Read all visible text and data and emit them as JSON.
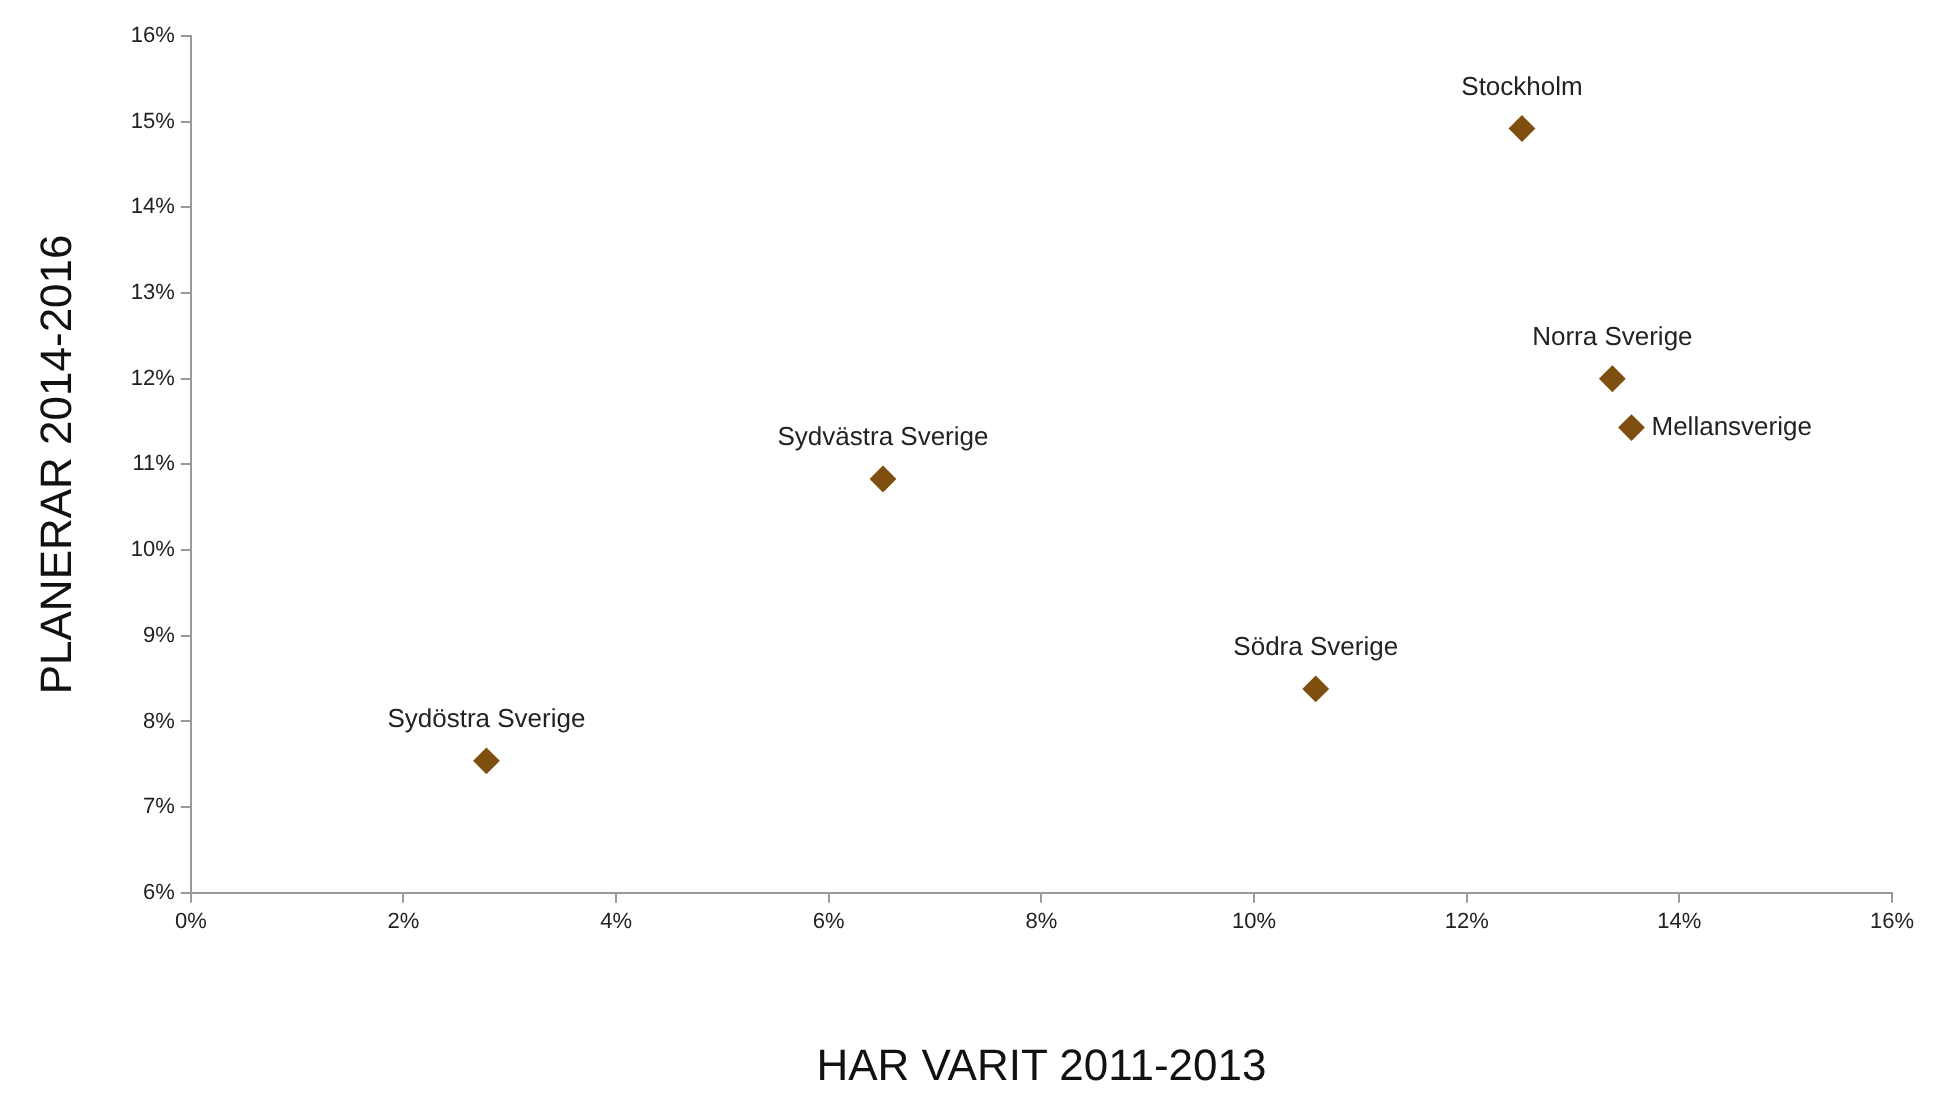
{
  "chart_data": {
    "type": "scatter",
    "xlabel": "HAR VARIT 2011-2013",
    "ylabel": "PLANERAR 2014-2016",
    "x": [
      12.52,
      13.37,
      13.55,
      6.51,
      10.58,
      2.78
    ],
    "series": [
      {
        "color": "#7f4f10",
        "values": [
          14.92,
          12.0,
          11.43,
          10.83,
          8.38,
          7.54
        ]
      }
    ],
    "marker": "diamond",
    "grid": false,
    "legend": false,
    "xlim": [
      0,
      16
    ],
    "xticks": [
      {
        "value": 0,
        "label": "0%"
      },
      {
        "value": 2,
        "label": "2%"
      },
      {
        "value": 4,
        "label": "4%"
      },
      {
        "value": 6,
        "label": "6%"
      },
      {
        "value": 8,
        "label": "8%"
      },
      {
        "value": 10,
        "label": "10%"
      },
      {
        "value": 12,
        "label": "12%"
      },
      {
        "value": 14,
        "label": "14%"
      },
      {
        "value": 16,
        "label": "16%"
      }
    ],
    "ylim": [
      6,
      16
    ],
    "yticks": [
      {
        "value": 6,
        "label": "6%"
      },
      {
        "value": 7,
        "label": "7%"
      },
      {
        "value": 8,
        "label": "8%"
      },
      {
        "value": 9,
        "label": "9%"
      },
      {
        "value": 10,
        "label": "10%"
      },
      {
        "value": 11,
        "label": "11%"
      },
      {
        "value": 12,
        "label": "12%"
      },
      {
        "value": 13,
        "label": "13%"
      },
      {
        "value": 14,
        "label": "14%"
      },
      {
        "value": 15,
        "label": "15%"
      },
      {
        "value": 16,
        "label": "16%"
      }
    ],
    "annotations": [
      {
        "text": "Stockholm",
        "x": 12.52,
        "y": 14.92
      },
      {
        "text": "Norra Sverige",
        "x": 13.37,
        "y": 12.0
      },
      {
        "text": "Mellansverige",
        "x": 13.55,
        "y": 11.43
      },
      {
        "text": "Sydvästra Sverige",
        "x": 6.51,
        "y": 10.83
      },
      {
        "text": "Södra Sverige",
        "x": 10.58,
        "y": 8.38
      },
      {
        "text": "Sydöstra Sverige",
        "x": 2.78,
        "y": 7.54
      }
    ]
  }
}
